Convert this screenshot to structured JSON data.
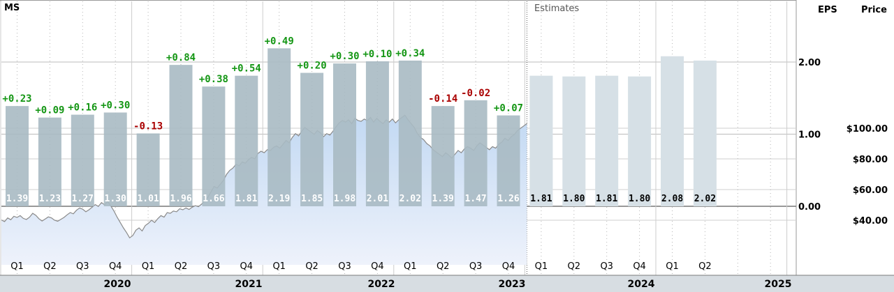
{
  "ticker": "MS",
  "estimates_label": "Estimates",
  "eps_header": "EPS",
  "price_header": "Price",
  "colors": {
    "actual_bar": "#a9bac3",
    "estimate_bar": "#d6e0e6",
    "positive": "#149614",
    "negative": "#aa0000",
    "price_fill": "#c2d9f3",
    "price_line": "#8a8a8a",
    "bottom_band": "#d7dde2"
  },
  "chart_data": {
    "type": "bar",
    "title": "",
    "eps_axis": {
      "ticks": [
        0,
        1,
        2
      ],
      "tick_labels": [
        "0.00",
        "1.00",
        "2.00"
      ]
    },
    "price_axis": {
      "ticks": [
        40,
        60,
        80,
        100
      ],
      "tick_labels": [
        "$40.00",
        "$60.00",
        "$80.00",
        "$100.00"
      ]
    },
    "actuals": [
      {
        "q": "Q1",
        "year": 2020,
        "eps": 1.39,
        "label": "1.39",
        "diff": "+0.23"
      },
      {
        "q": "Q2",
        "year": 2020,
        "eps": 1.23,
        "label": "1.23",
        "diff": "+0.09"
      },
      {
        "q": "Q3",
        "year": 2020,
        "eps": 1.27,
        "label": "1.27",
        "diff": "+0.16"
      },
      {
        "q": "Q4",
        "year": 2020,
        "eps": 1.3,
        "label": "1.30",
        "diff": "+0.30"
      },
      {
        "q": "Q1",
        "year": 2021,
        "eps": 1.01,
        "label": "1.01",
        "diff": "-0.13"
      },
      {
        "q": "Q2",
        "year": 2021,
        "eps": 1.96,
        "label": "1.96",
        "diff": "+0.84"
      },
      {
        "q": "Q3",
        "year": 2021,
        "eps": 1.66,
        "label": "1.66",
        "diff": "+0.38"
      },
      {
        "q": "Q4",
        "year": 2021,
        "eps": 1.81,
        "label": "1.81",
        "diff": "+0.54"
      },
      {
        "q": "Q1",
        "year": 2022,
        "eps": 2.19,
        "label": "2.19",
        "diff": "+0.49"
      },
      {
        "q": "Q2",
        "year": 2022,
        "eps": 1.85,
        "label": "1.85",
        "diff": "+0.20"
      },
      {
        "q": "Q3",
        "year": 2022,
        "eps": 1.98,
        "label": "1.98",
        "diff": "+0.30"
      },
      {
        "q": "Q4",
        "year": 2022,
        "eps": 2.01,
        "label": "2.01",
        "diff": "+0.10"
      },
      {
        "q": "Q1",
        "year": 2023,
        "eps": 2.02,
        "label": "2.02",
        "diff": "+0.34"
      },
      {
        "q": "Q2",
        "year": 2023,
        "eps": 1.39,
        "label": "1.39",
        "diff": "-0.14"
      },
      {
        "q": "Q3",
        "year": 2023,
        "eps": 1.47,
        "label": "1.47",
        "diff": "-0.02"
      },
      {
        "q": "Q4",
        "year": 2023,
        "eps": 1.26,
        "label": "1.26",
        "diff": "+0.07"
      }
    ],
    "estimates": [
      {
        "q": "Q1",
        "year": 2024,
        "eps": 1.81,
        "label": "1.81"
      },
      {
        "q": "Q2",
        "year": 2024,
        "eps": 1.8,
        "label": "1.80"
      },
      {
        "q": "Q3",
        "year": 2024,
        "eps": 1.81,
        "label": "1.81"
      },
      {
        "q": "Q4",
        "year": 2024,
        "eps": 1.8,
        "label": "1.80"
      },
      {
        "q": "Q1",
        "year": 2025,
        "eps": 2.08,
        "label": "2.08"
      },
      {
        "q": "Q2",
        "year": 2025,
        "eps": 2.02,
        "label": "2.02"
      }
    ],
    "year_labels": [
      "2020",
      "2021",
      "2022",
      "2023",
      "2024",
      "2025"
    ],
    "price_series": [
      40.2,
      39.1,
      41.5,
      40.3,
      42.6,
      41.8,
      43.0,
      41.2,
      40.5,
      42.0,
      44.5,
      43.2,
      41.0,
      39.5,
      40.8,
      42.2,
      41.5,
      40.0,
      39.3,
      40.6,
      41.8,
      43.5,
      45.0,
      44.2,
      46.5,
      48.0,
      47.2,
      45.5,
      46.8,
      48.5,
      50.2,
      49.0,
      51.5,
      50.0,
      52.3,
      49.2,
      46.0,
      42.0,
      38.5,
      35.0,
      32.0,
      28.5,
      30.0,
      33.5,
      35.0,
      33.0,
      36.5,
      38.0,
      40.0,
      38.5,
      41.0,
      43.0,
      42.0,
      45.0,
      44.5,
      46.0,
      45.5,
      47.5,
      46.8,
      48.0,
      47.0,
      48.5,
      49.5,
      48.8,
      50.5,
      52.5,
      55.0,
      58.5,
      62.0,
      61.0,
      63.5,
      66.0,
      70.0,
      72.5,
      74.0,
      76.5,
      75.5,
      78.0,
      77.2,
      79.5,
      81.0,
      80.0,
      83.5,
      85.0,
      84.0,
      86.0,
      85.5,
      87.5,
      88.5,
      87.0,
      89.5,
      92.0,
      90.5,
      94.0,
      96.5,
      95.0,
      98.0,
      100.5,
      99.0,
      97.5,
      96.0,
      98.5,
      97.0,
      94.5,
      96.5,
      95.5,
      98.0,
      101.0,
      103.5,
      105.0,
      104.0,
      105.5,
      103.0,
      106.5,
      105.0,
      104.5,
      106.0,
      105.0,
      107.0,
      104.0,
      106.5,
      104.5,
      103.0,
      105.5,
      104.0,
      106.0,
      103.5,
      105.5,
      107.0,
      108.5,
      105.5,
      103.0,
      100.5,
      96.5,
      94.0,
      92.5,
      90.0,
      88.5,
      86.0,
      84.5,
      83.0,
      81.5,
      84.0,
      82.5,
      80.5,
      83.0,
      85.5,
      84.0,
      86.5,
      88.0,
      87.0,
      85.5,
      88.5,
      90.5,
      89.0,
      87.5,
      86.0,
      88.0,
      87.0,
      89.5,
      91.0,
      93.5,
      92.0,
      94.5,
      96.0,
      98.5,
      100.0,
      101.5,
      103.0
    ]
  }
}
